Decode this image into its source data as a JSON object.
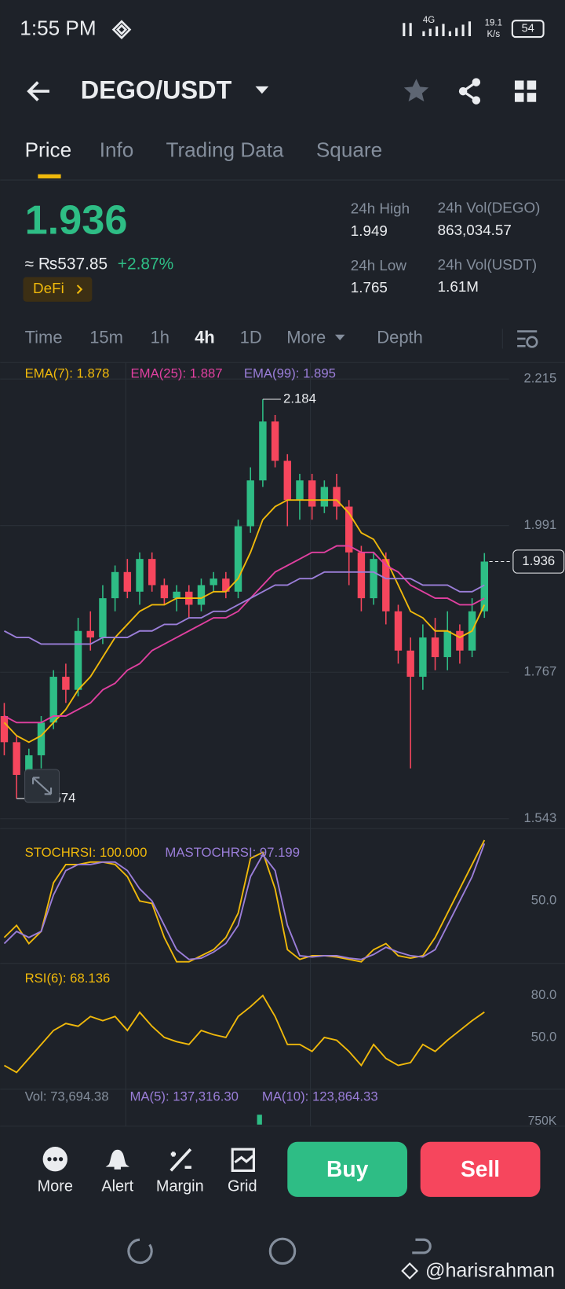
{
  "status": {
    "time": "1:55 PM",
    "network": "4G",
    "speed": "19.1",
    "speed_unit": "K/s",
    "battery": "54"
  },
  "header": {
    "pair": "DEGO/USDT"
  },
  "tabs": [
    "Price",
    "Info",
    "Trading Data",
    "Square"
  ],
  "ticker": {
    "last": "1.936",
    "approx": "≈ ₨537.85",
    "change": "+2.87%",
    "tag": "DeFi",
    "stats": [
      {
        "label": "24h High",
        "value": "1.949"
      },
      {
        "label": "24h Vol(DEGO)",
        "value": "863,034.57"
      },
      {
        "label": "24h Low",
        "value": "1.765"
      },
      {
        "label": "24h Vol(USDT)",
        "value": "1.61M"
      }
    ]
  },
  "intervals": [
    "Time",
    "15m",
    "1h",
    "4h",
    "1D",
    "More",
    "Depth"
  ],
  "chart": {
    "type": "candlestick",
    "ylim": [
      1.543,
      2.215
    ],
    "yticks": [
      2.215,
      1.991,
      1.767,
      1.543
    ],
    "high_label": 2.184,
    "low_label": 1.574,
    "last_price": 1.936,
    "candles": [
      {
        "o": 1.7,
        "h": 1.72,
        "l": 1.64,
        "c": 1.66
      },
      {
        "o": 1.66,
        "h": 1.67,
        "l": 1.574,
        "c": 1.61
      },
      {
        "o": 1.61,
        "h": 1.65,
        "l": 1.6,
        "c": 1.64
      },
      {
        "o": 1.64,
        "h": 1.7,
        "l": 1.62,
        "c": 1.69
      },
      {
        "o": 1.69,
        "h": 1.77,
        "l": 1.68,
        "c": 1.76
      },
      {
        "o": 1.76,
        "h": 1.78,
        "l": 1.72,
        "c": 1.74
      },
      {
        "o": 1.74,
        "h": 1.85,
        "l": 1.73,
        "c": 1.83
      },
      {
        "o": 1.83,
        "h": 1.86,
        "l": 1.8,
        "c": 1.82
      },
      {
        "o": 1.82,
        "h": 1.9,
        "l": 1.81,
        "c": 1.88
      },
      {
        "o": 1.88,
        "h": 1.93,
        "l": 1.86,
        "c": 1.92
      },
      {
        "o": 1.92,
        "h": 1.94,
        "l": 1.88,
        "c": 1.89
      },
      {
        "o": 1.89,
        "h": 1.95,
        "l": 1.87,
        "c": 1.94
      },
      {
        "o": 1.94,
        "h": 1.95,
        "l": 1.89,
        "c": 1.9
      },
      {
        "o": 1.9,
        "h": 1.91,
        "l": 1.87,
        "c": 1.88
      },
      {
        "o": 1.88,
        "h": 1.9,
        "l": 1.86,
        "c": 1.89
      },
      {
        "o": 1.89,
        "h": 1.9,
        "l": 1.85,
        "c": 1.87
      },
      {
        "o": 1.87,
        "h": 1.91,
        "l": 1.86,
        "c": 1.9
      },
      {
        "o": 1.9,
        "h": 1.92,
        "l": 1.89,
        "c": 1.91
      },
      {
        "o": 1.91,
        "h": 1.92,
        "l": 1.88,
        "c": 1.89
      },
      {
        "o": 1.89,
        "h": 2.0,
        "l": 1.88,
        "c": 1.99
      },
      {
        "o": 1.99,
        "h": 2.08,
        "l": 1.98,
        "c": 2.06
      },
      {
        "o": 2.06,
        "h": 2.184,
        "l": 2.05,
        "c": 2.15
      },
      {
        "o": 2.15,
        "h": 2.16,
        "l": 2.08,
        "c": 2.09
      },
      {
        "o": 2.09,
        "h": 2.1,
        "l": 1.99,
        "c": 2.03
      },
      {
        "o": 2.03,
        "h": 2.07,
        "l": 2.0,
        "c": 2.06
      },
      {
        "o": 2.06,
        "h": 2.07,
        "l": 2.0,
        "c": 2.02
      },
      {
        "o": 2.02,
        "h": 2.06,
        "l": 2.01,
        "c": 2.05
      },
      {
        "o": 2.05,
        "h": 2.07,
        "l": 2.0,
        "c": 2.02
      },
      {
        "o": 2.02,
        "h": 2.03,
        "l": 1.9,
        "c": 1.95
      },
      {
        "o": 1.95,
        "h": 1.96,
        "l": 1.86,
        "c": 1.88
      },
      {
        "o": 1.88,
        "h": 1.95,
        "l": 1.87,
        "c": 1.94
      },
      {
        "o": 1.94,
        "h": 1.95,
        "l": 1.84,
        "c": 1.86
      },
      {
        "o": 1.86,
        "h": 1.87,
        "l": 1.78,
        "c": 1.8
      },
      {
        "o": 1.8,
        "h": 1.82,
        "l": 1.62,
        "c": 1.76
      },
      {
        "o": 1.76,
        "h": 1.84,
        "l": 1.74,
        "c": 1.82
      },
      {
        "o": 1.82,
        "h": 1.85,
        "l": 1.77,
        "c": 1.79
      },
      {
        "o": 1.79,
        "h": 1.86,
        "l": 1.77,
        "c": 1.83
      },
      {
        "o": 1.83,
        "h": 1.84,
        "l": 1.78,
        "c": 1.8
      },
      {
        "o": 1.8,
        "h": 1.88,
        "l": 1.79,
        "c": 1.86
      },
      {
        "o": 1.86,
        "h": 1.949,
        "l": 1.85,
        "c": 1.936
      }
    ],
    "up_color": "#2ebd85",
    "down_color": "#f6465d",
    "series": [
      {
        "name": "EMA(7): 1.878",
        "color": "#f0b90b",
        "values": [
          1.69,
          1.67,
          1.66,
          1.67,
          1.69,
          1.71,
          1.74,
          1.76,
          1.79,
          1.82,
          1.84,
          1.86,
          1.87,
          1.87,
          1.88,
          1.88,
          1.88,
          1.89,
          1.89,
          1.91,
          1.95,
          2.0,
          2.02,
          2.03,
          2.03,
          2.03,
          2.03,
          2.03,
          2.01,
          1.98,
          1.97,
          1.94,
          1.9,
          1.86,
          1.85,
          1.83,
          1.83,
          1.82,
          1.83,
          1.87
        ]
      },
      {
        "name": "EMA(25): 1.887",
        "color": "#e040a0",
        "values": [
          1.7,
          1.69,
          1.69,
          1.69,
          1.7,
          1.7,
          1.71,
          1.72,
          1.74,
          1.75,
          1.77,
          1.78,
          1.8,
          1.81,
          1.82,
          1.83,
          1.84,
          1.85,
          1.85,
          1.86,
          1.88,
          1.9,
          1.92,
          1.93,
          1.94,
          1.95,
          1.95,
          1.96,
          1.96,
          1.95,
          1.95,
          1.93,
          1.92,
          1.9,
          1.89,
          1.88,
          1.88,
          1.87,
          1.87,
          1.88
        ]
      },
      {
        "name": "EMA(99): 1.895",
        "color": "#9b7ed9",
        "values": [
          1.83,
          1.82,
          1.82,
          1.81,
          1.81,
          1.81,
          1.81,
          1.81,
          1.82,
          1.82,
          1.82,
          1.83,
          1.83,
          1.84,
          1.84,
          1.85,
          1.85,
          1.86,
          1.86,
          1.87,
          1.88,
          1.89,
          1.9,
          1.9,
          1.91,
          1.91,
          1.92,
          1.92,
          1.92,
          1.92,
          1.92,
          1.91,
          1.91,
          1.91,
          1.9,
          1.9,
          1.9,
          1.89,
          1.89,
          1.9
        ]
      }
    ]
  },
  "stoch": {
    "ylim": [
      0,
      100
    ],
    "yticks": [
      {
        "value": 50,
        "label": "50.0"
      }
    ],
    "series": [
      {
        "name": "STOCHRSI: 100.000",
        "color": "#f0b90b",
        "values": [
          20,
          30,
          15,
          25,
          65,
          80,
          80,
          82,
          82,
          80,
          70,
          50,
          48,
          20,
          0,
          0,
          5,
          10,
          20,
          40,
          85,
          90,
          60,
          10,
          2,
          5,
          5,
          4,
          2,
          0,
          10,
          15,
          5,
          3,
          5,
          20,
          40,
          60,
          80,
          100
        ]
      },
      {
        "name": "MASTOCHRSI: 97.199",
        "color": "#9b7ed9",
        "values": [
          15,
          25,
          20,
          25,
          55,
          75,
          80,
          80,
          82,
          82,
          75,
          60,
          50,
          30,
          10,
          2,
          3,
          8,
          15,
          30,
          70,
          88,
          75,
          30,
          5,
          4,
          5,
          5,
          3,
          2,
          6,
          12,
          8,
          5,
          4,
          10,
          30,
          50,
          70,
          97.199
        ]
      }
    ]
  },
  "rsi": {
    "yticks": [
      {
        "value": 80,
        "label": "80.0"
      },
      {
        "value": 50,
        "label": "50.0"
      }
    ],
    "series": [
      {
        "name": "RSI(6): 68.136",
        "color": "#f0b90b",
        "values": [
          30,
          25,
          35,
          45,
          55,
          60,
          58,
          65,
          62,
          65,
          55,
          68,
          58,
          50,
          47,
          45,
          55,
          52,
          50,
          65,
          72,
          80,
          65,
          45,
          45,
          40,
          50,
          48,
          40,
          30,
          45,
          35,
          30,
          32,
          45,
          40,
          48,
          55,
          62,
          68.136
        ]
      }
    ]
  },
  "volume": {
    "labels": [
      "Vol: 73,694.38",
      "MA(5): 137,316.30",
      "MA(10): 123,864.33"
    ],
    "tick": "750K"
  },
  "toolbar": [
    "More",
    "Alert",
    "Margin",
    "Grid"
  ],
  "actions": {
    "buy": "Buy",
    "sell": "Sell"
  },
  "watermark": "@harisrahman"
}
